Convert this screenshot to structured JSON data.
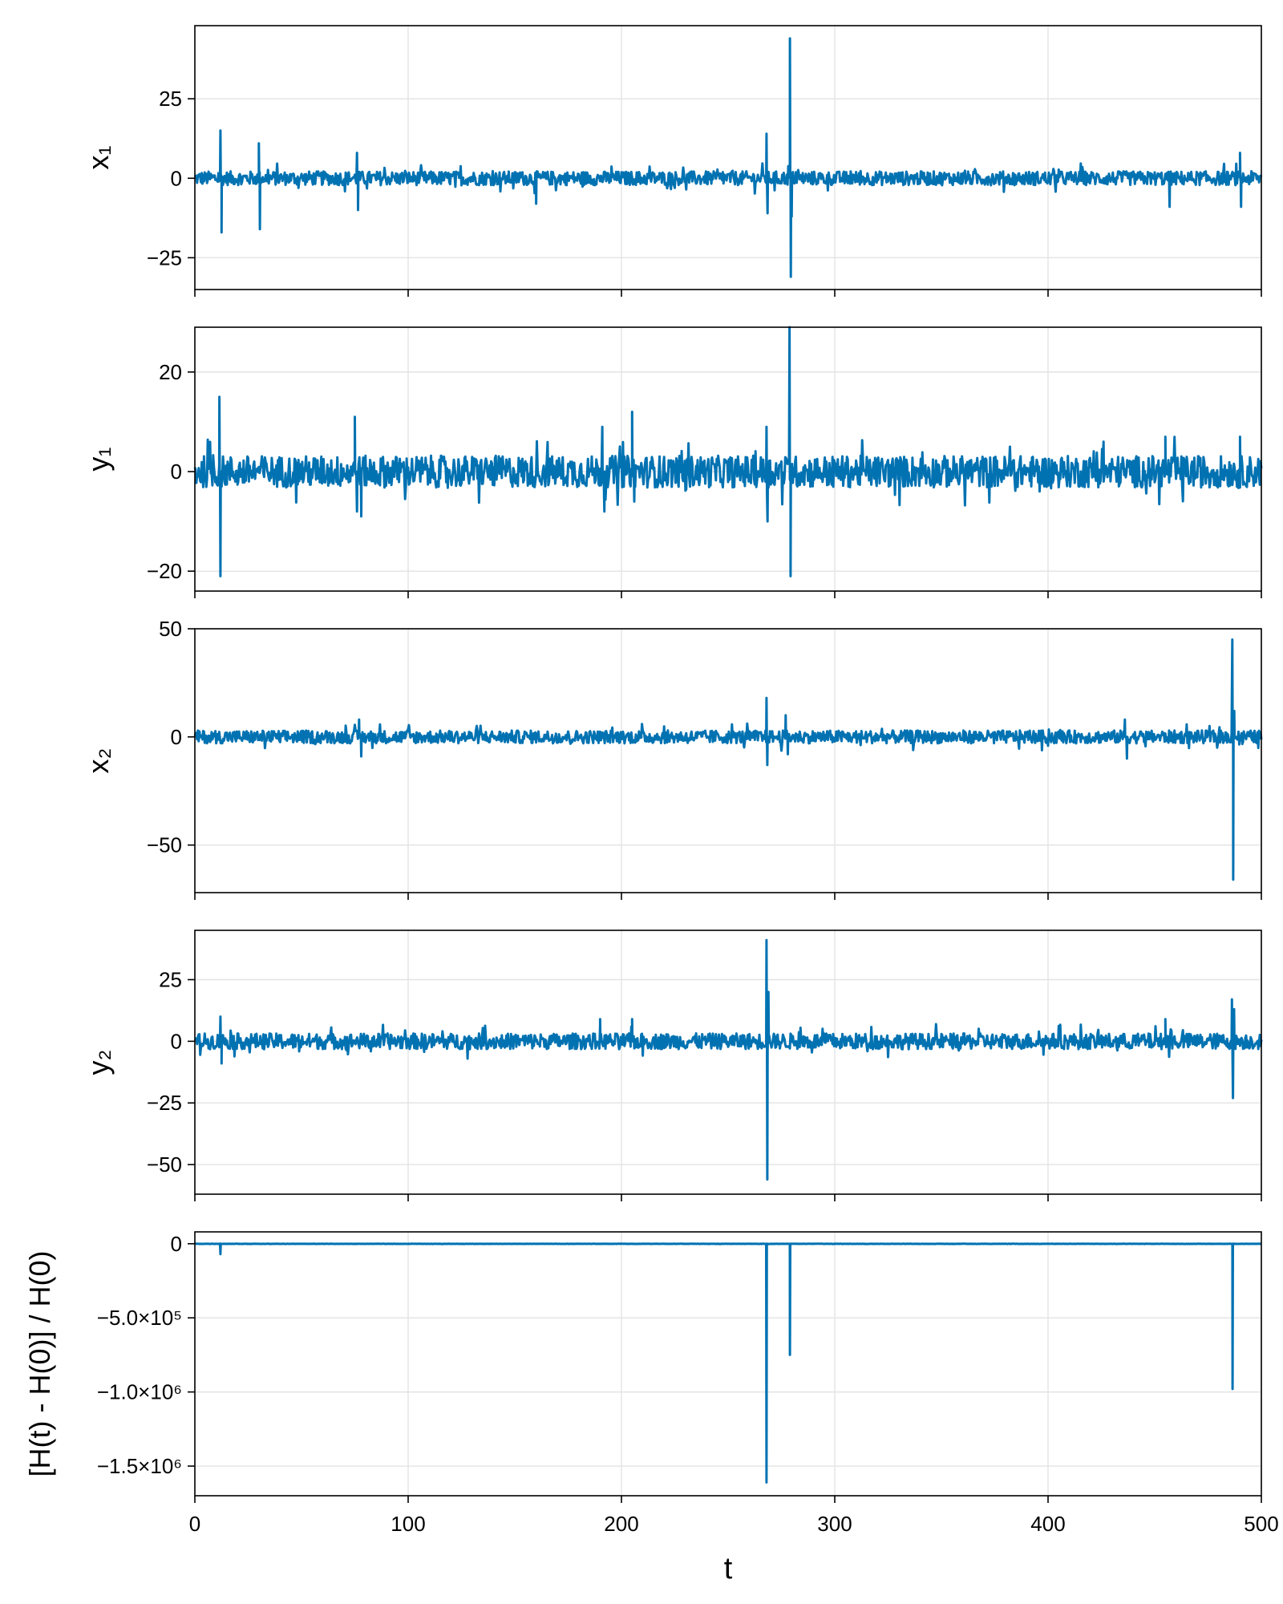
{
  "chart_data": [
    {
      "type": "line",
      "ylabel": "x₁",
      "xlim": [
        0,
        500
      ],
      "ylim": [
        -35,
        48
      ],
      "yticks": [
        {
          "value": 25,
          "label": "25"
        },
        {
          "value": 0,
          "label": "0"
        },
        {
          "value": -25,
          "label": "−25"
        }
      ],
      "base_amplitude": 2.2,
      "spikes": [
        [
          12,
          15
        ],
        [
          12.5,
          -17
        ],
        [
          30,
          11
        ],
        [
          30.5,
          -16
        ],
        [
          76,
          8
        ],
        [
          76.5,
          -10
        ],
        [
          160,
          -8
        ],
        [
          268,
          14
        ],
        [
          268.5,
          -11
        ],
        [
          279,
          44
        ],
        [
          279.4,
          -31
        ],
        [
          279.8,
          -12
        ],
        [
          457,
          -9
        ],
        [
          490,
          8
        ],
        [
          490.5,
          -9
        ]
      ],
      "series": [
        {
          "color": "#0072b2"
        }
      ],
      "grid": true
    },
    {
      "type": "line",
      "ylabel": "y₁",
      "xlim": [
        0,
        500
      ],
      "ylim": [
        -24,
        29
      ],
      "yticks": [
        {
          "value": 20,
          "label": "20"
        },
        {
          "value": 0,
          "label": "0"
        },
        {
          "value": -20,
          "label": "−20"
        }
      ],
      "base_amplitude": 3.2,
      "spikes": [
        [
          11.5,
          15
        ],
        [
          12,
          -21
        ],
        [
          75,
          11
        ],
        [
          76,
          -8
        ],
        [
          78,
          -9
        ],
        [
          191,
          9
        ],
        [
          192,
          -8
        ],
        [
          205,
          12
        ],
        [
          206,
          -6
        ],
        [
          268,
          9
        ],
        [
          268.5,
          -10
        ],
        [
          278.8,
          29
        ],
        [
          279.3,
          -21
        ],
        [
          426,
          6
        ],
        [
          455,
          7
        ],
        [
          490,
          7
        ]
      ],
      "series": [
        {
          "color": "#0072b2"
        }
      ],
      "grid": true
    },
    {
      "type": "line",
      "ylabel": "x₂",
      "xlim": [
        0,
        500
      ],
      "ylim": [
        -72,
        50
      ],
      "yticks": [
        {
          "value": 50,
          "label": "50"
        },
        {
          "value": 0,
          "label": "0"
        },
        {
          "value": -50,
          "label": "−50"
        }
      ],
      "base_amplitude": 3.0,
      "spikes": [
        [
          77,
          8
        ],
        [
          78,
          -9
        ],
        [
          268,
          18
        ],
        [
          268.4,
          -13
        ],
        [
          277,
          10
        ],
        [
          278,
          -8
        ],
        [
          436,
          8
        ],
        [
          437,
          -10
        ],
        [
          486.4,
          45
        ],
        [
          486.8,
          -66
        ],
        [
          487.3,
          12
        ]
      ],
      "series": [
        {
          "color": "#0072b2"
        }
      ],
      "grid": true
    },
    {
      "type": "line",
      "ylabel": "y₂",
      "xlim": [
        0,
        500
      ],
      "ylim": [
        -62,
        45
      ],
      "yticks": [
        {
          "value": 25,
          "label": "25"
        },
        {
          "value": 0,
          "label": "0"
        },
        {
          "value": -25,
          "label": "−25"
        },
        {
          "value": -50,
          "label": "−50"
        }
      ],
      "base_amplitude": 3.2,
      "spikes": [
        [
          12,
          10
        ],
        [
          12.5,
          -9
        ],
        [
          190,
          9
        ],
        [
          205,
          9
        ],
        [
          268,
          41
        ],
        [
          268.4,
          -56
        ],
        [
          268.9,
          20
        ],
        [
          455,
          9
        ],
        [
          486.2,
          17
        ],
        [
          486.7,
          -23
        ],
        [
          487.2,
          13
        ]
      ],
      "series": [
        {
          "color": "#0072b2"
        }
      ],
      "grid": true
    },
    {
      "type": "line",
      "ylabel": "[H(t) - H(0)] / H(0)",
      "xlabel": "t",
      "xlim": [
        0,
        500
      ],
      "ylim": [
        -1700000,
        80000
      ],
      "yticks": [
        {
          "value": 0,
          "label": "0"
        },
        {
          "value": -500000,
          "label": "−5.0×10⁵"
        },
        {
          "value": -1000000,
          "label": "−1.0×10⁶"
        },
        {
          "value": -1500000,
          "label": "−1.5×10⁶"
        }
      ],
      "xticks": [
        {
          "value": 0,
          "label": "0"
        },
        {
          "value": 100,
          "label": "100"
        },
        {
          "value": 200,
          "label": "200"
        },
        {
          "value": 300,
          "label": "300"
        },
        {
          "value": 400,
          "label": "400"
        },
        {
          "value": 500,
          "label": "500"
        }
      ],
      "base_amplitude": 3000,
      "spikes": [
        [
          12,
          -70000
        ],
        [
          268,
          -1610000
        ],
        [
          279,
          -750000
        ],
        [
          486.5,
          -980000
        ]
      ],
      "series": [
        {
          "color": "#0072b2"
        }
      ],
      "grid": true
    }
  ]
}
